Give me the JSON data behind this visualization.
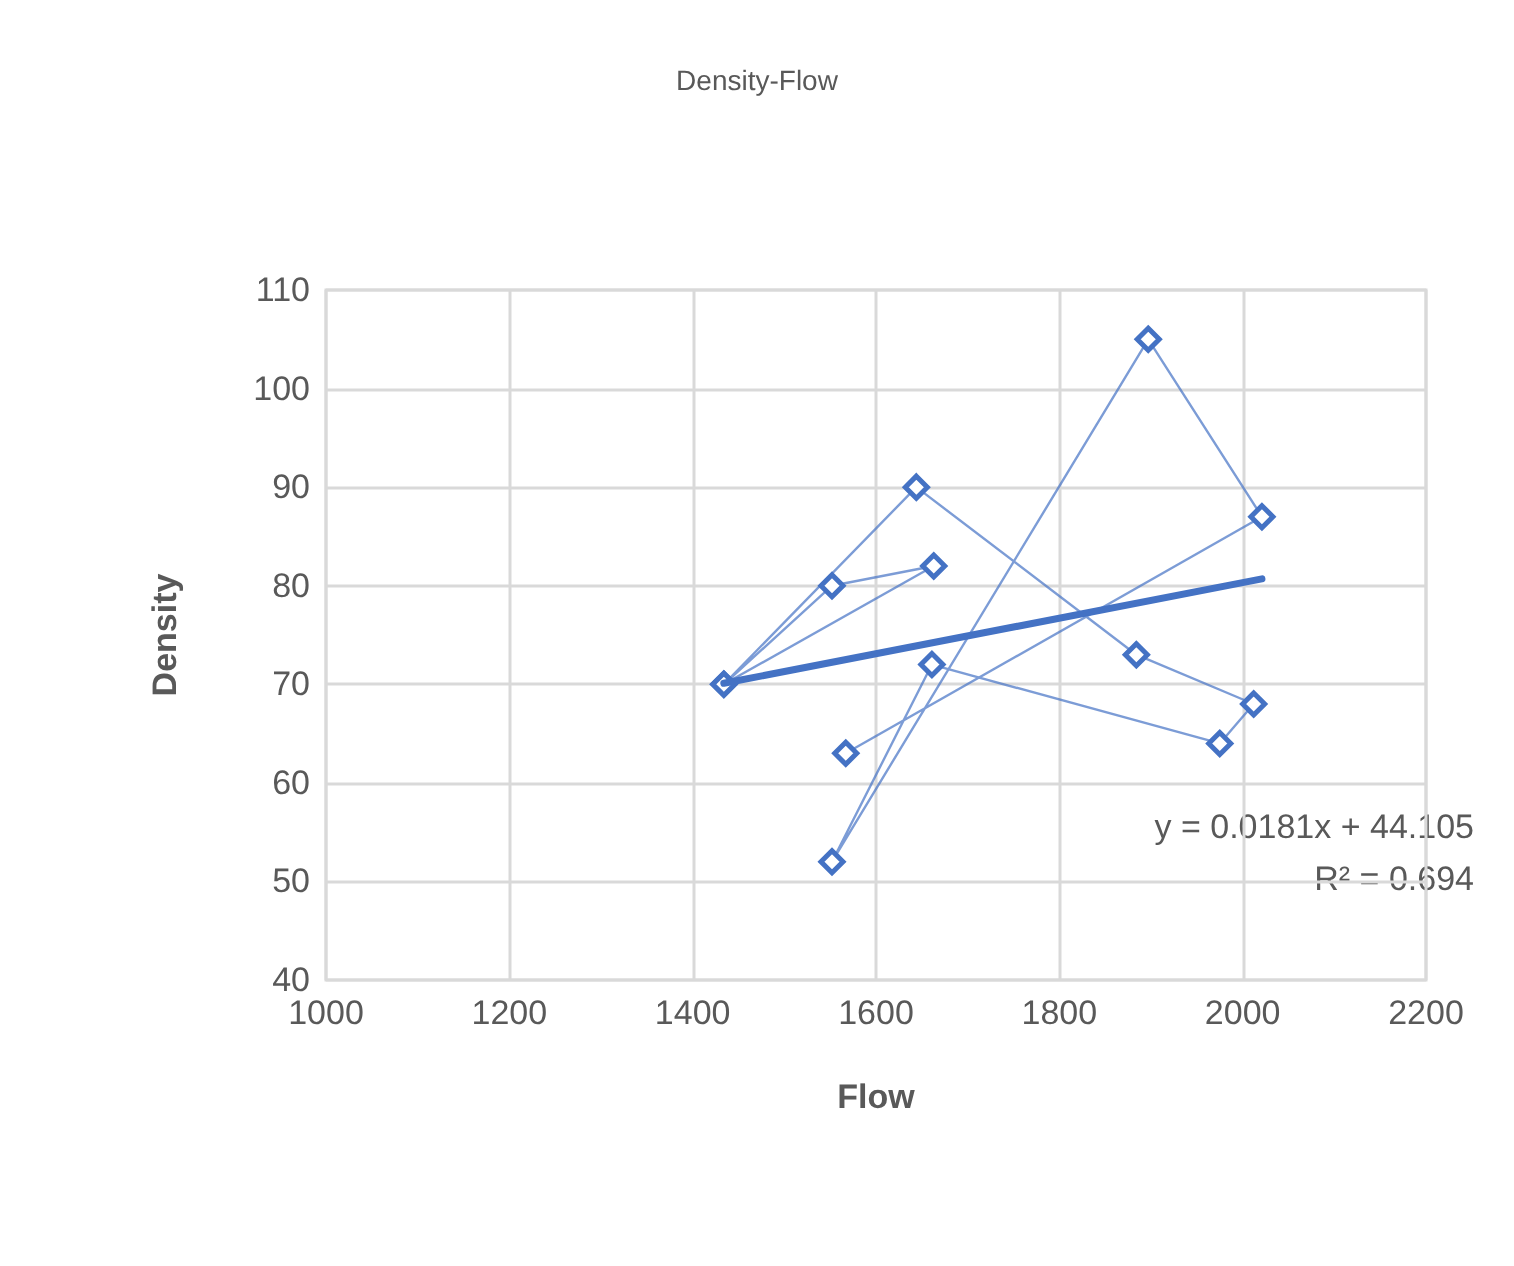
{
  "chart_data": {
    "type": "line",
    "title": "Density-Flow",
    "xlabel": "Flow",
    "ylabel": "Density",
    "series": [
      {
        "color": "#4472c4",
        "marker": "diamond",
        "x": [
          1567,
          2021,
          1897,
          1552,
          1661,
          1975,
          2012,
          1884,
          1644,
          1434,
          1552,
          1663,
          1434
        ],
        "values": [
          63,
          87,
          105,
          52,
          72,
          64,
          68,
          73,
          90,
          70,
          80,
          82,
          70
        ]
      },
      {
        "color": "#4472c4",
        "marker": "none",
        "x": [
          1434,
          2021
        ],
        "values": [
          70.1,
          80.7
        ]
      }
    ],
    "xlim": [
      1000,
      2200
    ],
    "xticks": [
      1000,
      1200,
      1400,
      1600,
      1800,
      2000,
      2200
    ],
    "ylim": [
      40,
      110
    ],
    "yticks": [
      40,
      50,
      60,
      70,
      80,
      90,
      100,
      110
    ],
    "grid": true,
    "annotations": [
      "y = 0.0181x + 44.105",
      "R² = 0.694"
    ]
  }
}
